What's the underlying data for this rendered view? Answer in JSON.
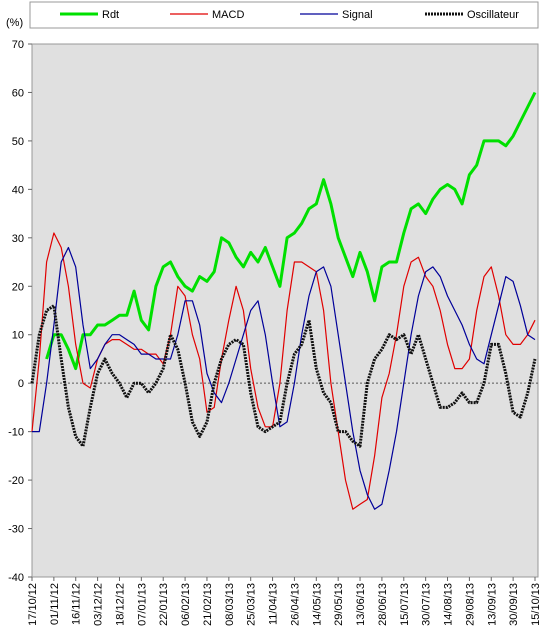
{
  "chart_data": {
    "type": "line",
    "y_label": "(%)",
    "categories": [
      "17/10/12",
      null,
      null,
      "01/11/12",
      null,
      null,
      "16/11/12",
      null,
      null,
      "03/12/12",
      null,
      null,
      "18/12/12",
      null,
      null,
      "07/01/13",
      null,
      null,
      "22/01/13",
      null,
      null,
      "06/02/13",
      null,
      null,
      "21/02/13",
      null,
      null,
      "08/03/13",
      null,
      null,
      "25/03/13",
      null,
      null,
      "11/04/13",
      null,
      null,
      "26/04/13",
      null,
      null,
      "14/05/13",
      null,
      null,
      "29/05/13",
      null,
      null,
      "13/06/13",
      null,
      null,
      "28/06/13",
      null,
      null,
      "15/07/13",
      null,
      null,
      "30/07/13",
      null,
      null,
      "14/08/13",
      null,
      null,
      "29/08/13",
      null,
      null,
      "13/09/13",
      null,
      null,
      "30/09/13",
      null,
      null,
      "15/10/13"
    ],
    "series": [
      {
        "name": "Rdt",
        "color": "#00e000",
        "values": [
          null,
          null,
          5,
          10,
          10,
          7,
          3,
          10,
          10,
          12,
          12,
          13,
          14,
          14,
          19,
          13,
          11,
          20,
          24,
          25,
          22,
          20,
          19,
          22,
          21,
          23,
          30,
          29,
          26,
          24,
          27,
          25,
          28,
          24,
          20,
          30,
          31,
          33,
          36,
          37,
          42,
          37,
          30,
          26,
          22,
          27,
          23,
          17,
          24,
          25,
          25,
          31,
          36,
          37,
          35,
          38,
          40,
          41,
          40,
          37,
          43,
          45,
          50,
          50,
          50,
          49,
          51,
          54,
          57,
          60
        ]
      },
      {
        "name": "MACD",
        "color": "#e00000",
        "values": [
          -10,
          5,
          25,
          31,
          28,
          20,
          8,
          0,
          -1,
          5,
          8,
          9,
          9,
          8,
          7,
          7,
          6,
          6,
          4,
          10,
          20,
          18,
          10,
          5,
          -6,
          -5,
          5,
          13,
          20,
          15,
          3,
          -5,
          -9,
          -9,
          0,
          15,
          25,
          25,
          24,
          23,
          15,
          0,
          -10,
          -20,
          -26,
          -25,
          -24,
          -15,
          -3,
          2,
          10,
          20,
          25,
          26,
          22,
          20,
          15,
          8,
          3,
          3,
          5,
          15,
          22,
          24,
          18,
          10,
          8,
          8,
          10,
          13
        ]
      },
      {
        "name": "Signal",
        "color": "#000099",
        "values": [
          -10,
          -10,
          0,
          12,
          25,
          28,
          24,
          12,
          3,
          5,
          8,
          10,
          10,
          9,
          8,
          6,
          6,
          5,
          5,
          5,
          10,
          17,
          17,
          12,
          2,
          -2,
          -4,
          0,
          5,
          10,
          15,
          17,
          10,
          0,
          -9,
          -8,
          0,
          10,
          18,
          23,
          24,
          20,
          10,
          0,
          -10,
          -18,
          -23,
          -26,
          -25,
          -18,
          -10,
          0,
          10,
          18,
          23,
          24,
          22,
          18,
          15,
          12,
          8,
          5,
          4,
          10,
          16,
          22,
          21,
          16,
          10,
          9
        ]
      },
      {
        "name": "Oscillateur",
        "color": "#111111",
        "values": [
          0,
          10,
          15,
          16,
          5,
          -5,
          -11,
          -13,
          -5,
          2,
          5,
          2,
          0,
          -3,
          0,
          0,
          -2,
          0,
          3,
          10,
          7,
          0,
          -8,
          -11,
          -8,
          0,
          5,
          8,
          9,
          8,
          -2,
          -9,
          -10,
          -9,
          -8,
          0,
          6,
          8,
          13,
          3,
          -2,
          -4,
          -10,
          -10,
          -12,
          -13,
          0,
          5,
          7,
          10,
          9,
          10,
          6,
          10,
          5,
          0,
          -5,
          -5,
          -4,
          -2,
          -4,
          -4,
          0,
          8,
          8,
          2,
          -6,
          -7,
          -2,
          5
        ]
      }
    ],
    "ylim": [
      -40,
      70
    ],
    "yticks": [
      -40,
      -30,
      -20,
      -10,
      0,
      10,
      20,
      30,
      40,
      50,
      60,
      70
    ]
  }
}
